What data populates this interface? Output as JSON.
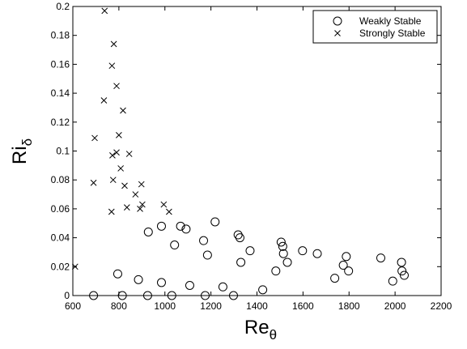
{
  "chart_data": {
    "type": "scatter",
    "xlabel": {
      "main": "Re",
      "sub": "θ"
    },
    "ylabel": {
      "main": "Ri",
      "sub": "δ"
    },
    "xlim": [
      600,
      2200
    ],
    "ylim": [
      0,
      0.2
    ],
    "xticks": [
      "600",
      "800",
      "1000",
      "1200",
      "1400",
      "1600",
      "1800",
      "2000",
      "2200"
    ],
    "yticks": [
      "0",
      "0.02",
      "0.04",
      "0.06",
      "0.08",
      "0.1",
      "0.12",
      "0.14",
      "0.16",
      "0.18",
      "0.2"
    ],
    "grid": false,
    "legend_position": "top-right",
    "series": [
      {
        "name": "Weakly Stable",
        "marker": "circle",
        "points": [
          [
            690,
            0.0
          ],
          [
            795,
            0.015
          ],
          [
            815,
            0.0
          ],
          [
            885,
            0.011
          ],
          [
            925,
            0.0
          ],
          [
            928,
            0.044
          ],
          [
            985,
            0.048
          ],
          [
            985,
            0.009
          ],
          [
            1030,
            0.0
          ],
          [
            1042,
            0.035
          ],
          [
            1068,
            0.048
          ],
          [
            1092,
            0.046
          ],
          [
            1108,
            0.007
          ],
          [
            1168,
            0.038
          ],
          [
            1175,
            0.0
          ],
          [
            1185,
            0.028
          ],
          [
            1218,
            0.051
          ],
          [
            1252,
            0.006
          ],
          [
            1298,
            0.0
          ],
          [
            1318,
            0.042
          ],
          [
            1326,
            0.04
          ],
          [
            1330,
            0.023
          ],
          [
            1370,
            0.031
          ],
          [
            1425,
            0.004
          ],
          [
            1482,
            0.017
          ],
          [
            1505,
            0.037
          ],
          [
            1512,
            0.034
          ],
          [
            1515,
            0.029
          ],
          [
            1532,
            0.023
          ],
          [
            1598,
            0.031
          ],
          [
            1662,
            0.029
          ],
          [
            1738,
            0.012
          ],
          [
            1775,
            0.021
          ],
          [
            1788,
            0.027
          ],
          [
            1798,
            0.017
          ],
          [
            1938,
            0.026
          ],
          [
            1990,
            0.01
          ],
          [
            2028,
            0.023
          ],
          [
            2030,
            0.017
          ],
          [
            2040,
            0.014
          ]
        ]
      },
      {
        "name": "Strongly Stable",
        "marker": "x",
        "points": [
          [
            610,
            0.02
          ],
          [
            690,
            0.078
          ],
          [
            695,
            0.109
          ],
          [
            735,
            0.135
          ],
          [
            738,
            0.197
          ],
          [
            768,
            0.058
          ],
          [
            770,
            0.159
          ],
          [
            772,
            0.097
          ],
          [
            775,
            0.08
          ],
          [
            778,
            0.174
          ],
          [
            790,
            0.099
          ],
          [
            790,
            0.145
          ],
          [
            800,
            0.111
          ],
          [
            808,
            0.088
          ],
          [
            818,
            0.128
          ],
          [
            825,
            0.076
          ],
          [
            835,
            0.061
          ],
          [
            845,
            0.098
          ],
          [
            872,
            0.07
          ],
          [
            892,
            0.06
          ],
          [
            898,
            0.077
          ],
          [
            902,
            0.063
          ],
          [
            995,
            0.063
          ],
          [
            1018,
            0.058
          ]
        ]
      }
    ]
  }
}
